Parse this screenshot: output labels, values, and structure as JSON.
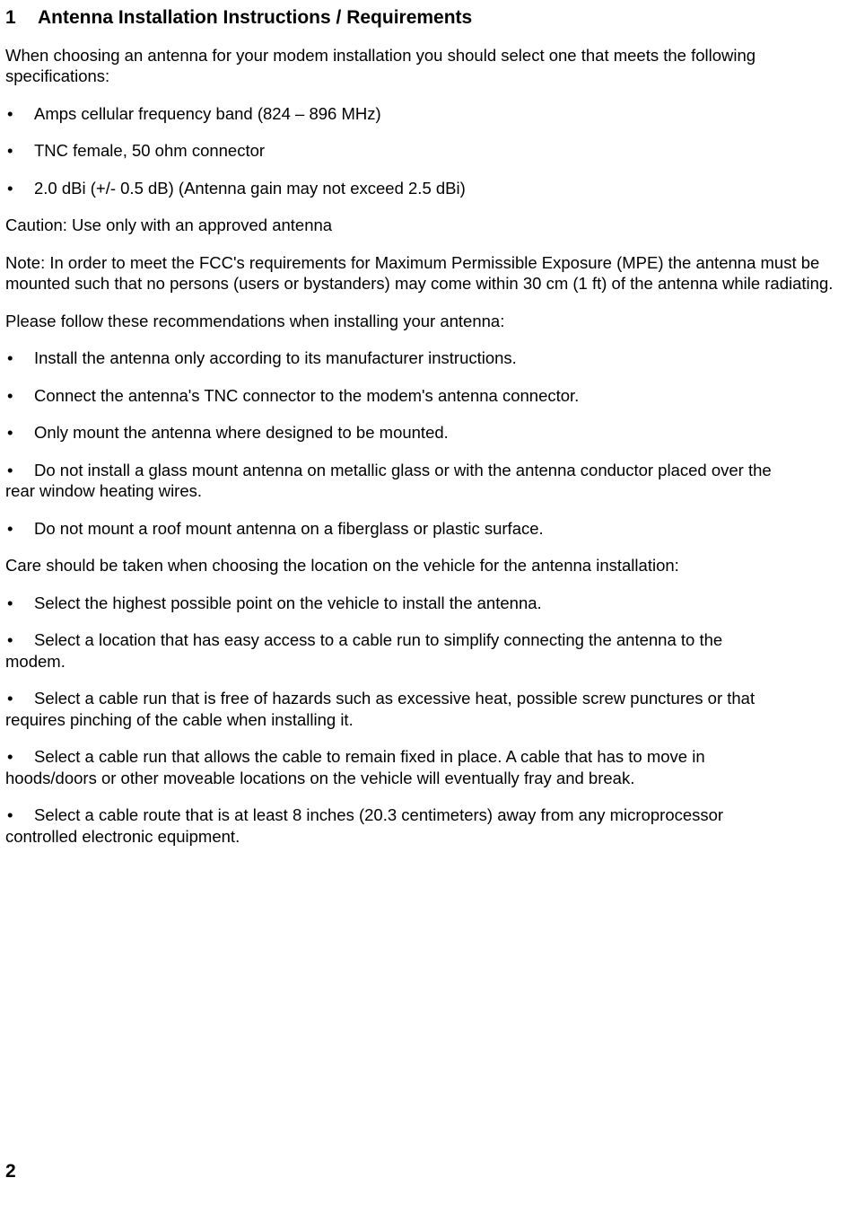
{
  "heading": {
    "number": "1",
    "title": "Antenna Installation Instructions / Requirements"
  },
  "intro": "When choosing an antenna for your modem installation you should select one that meets the following specifications:",
  "specs": {
    "b1": "Amps cellular frequency band (824 – 896 MHz)",
    "b2": "TNC female, 50 ohm connector",
    "b3": "2.0 dBi (+/- 0.5 dB) (Antenna gain may not exceed 2.5 dBi)"
  },
  "caution": "Caution: Use only with an approved antenna",
  "note": "Note: In order to meet the FCC's requirements for Maximum Permissible Exposure (MPE) the antenna must be mounted such that no persons (users or bystanders) may come within 30 cm (1 ft) of the antenna while radiating.",
  "recommend_intro": "Please follow these recommendations when installing your antenna:",
  "recs": {
    "b1": "Install the antenna only according to its manufacturer instructions.",
    "b2": "Connect the antenna's TNC connector to the modem's antenna connector.",
    "b3": "Only mount the antenna where designed to be mounted.",
    "b4_line": "Do not install a glass mount antenna on metallic glass or with the antenna conductor placed over the",
    "b4_cont": "rear window heating wires.",
    "b5": "Do not mount a roof mount antenna on a fiberglass or plastic surface."
  },
  "location_intro": "Care should be taken when choosing the location on the vehicle for the antenna installation:",
  "loc": {
    "b1": "Select the highest possible point on the vehicle to install the antenna.",
    "b2_line": "Select a location that has easy access to a cable run to simplify connecting the antenna to the",
    "b2_cont": "modem.",
    "b3_line": "Select a cable run that is free of hazards such as excessive heat, possible screw punctures or that",
    "b3_cont": "requires pinching of the cable when installing it.",
    "b4_line": "Select a cable run that allows the cable to remain fixed in place. A cable that has to move in",
    "b4_cont": "hoods/doors or other moveable locations on the vehicle will eventually fray and break.",
    "b5_line": "Select a cable route that is at least 8 inches (20.3 centimeters) away from any microprocessor",
    "b5_cont": "controlled electronic equipment."
  },
  "page_number": "2",
  "bullet_glyph": "•",
  "colors": {
    "text": "#000000",
    "background": "#ffffff"
  },
  "typography": {
    "body_pt": 14,
    "heading_pt": 16,
    "family": "Arial"
  }
}
